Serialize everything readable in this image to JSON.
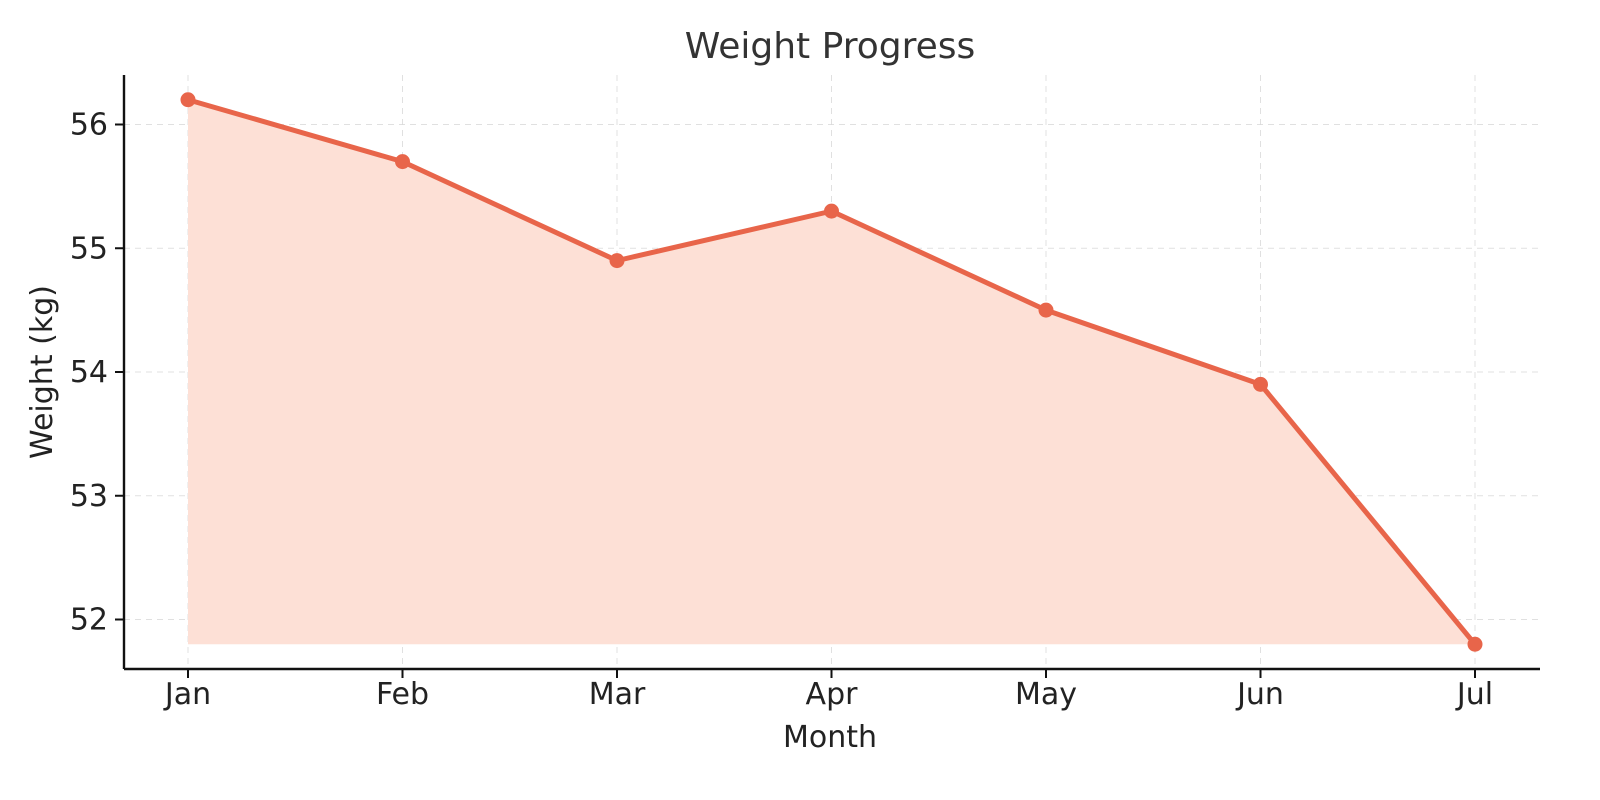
{
  "chart_data": {
    "type": "area",
    "title": "Weight Progress",
    "xlabel": "Month",
    "ylabel": "Weight (kg)",
    "categories": [
      "Jan",
      "Feb",
      "Mar",
      "Apr",
      "May",
      "Jun",
      "Jul"
    ],
    "series": [
      {
        "values": [
          56.2,
          55.7,
          54.9,
          55.3,
          54.5,
          53.9,
          51.8
        ]
      }
    ],
    "ylim": [
      51.6,
      56.4
    ],
    "yticks": [
      52,
      53,
      54,
      55,
      56
    ],
    "grid": true,
    "line_color": "#E8654A",
    "fill_color": "#FDE0D6",
    "fill_baseline": 51.8
  }
}
